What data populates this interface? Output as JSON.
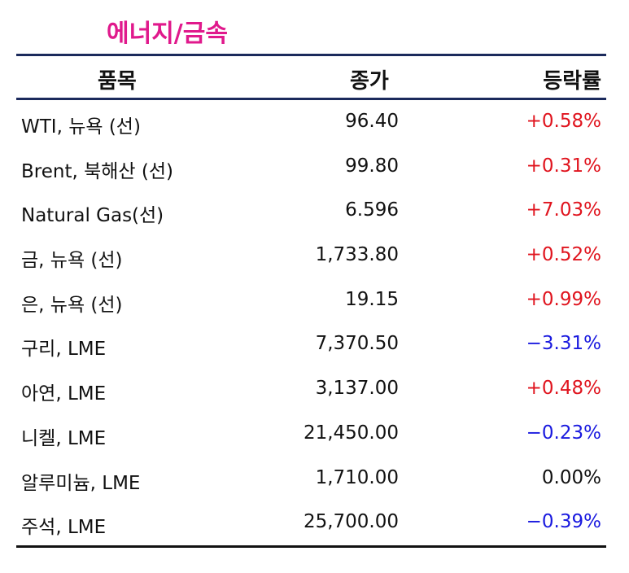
{
  "title": "에너지/금속",
  "header": {
    "item": "품목",
    "close": "종가",
    "change": "등락률"
  },
  "colors": {
    "title": "#e0198c",
    "up": "#e0141e",
    "down": "#1a1adf",
    "rule": "#1b2a5c"
  },
  "rows": [
    {
      "item": "WTI, 뉴욕 (선)",
      "close": "96.40",
      "change": "+0.58%",
      "dir": "up"
    },
    {
      "item": "Brent, 북해산 (선)",
      "close": "99.80",
      "change": "+0.31%",
      "dir": "up"
    },
    {
      "item": "Natural Gas(선)",
      "close": "6.596",
      "change": "+7.03%",
      "dir": "up"
    },
    {
      "item": "금, 뉴욕  (선)",
      "close": "1,733.80",
      "change": "+0.52%",
      "dir": "up"
    },
    {
      "item": "은, 뉴욕  (선)",
      "close": "19.15",
      "change": "+0.99%",
      "dir": "up"
    },
    {
      "item": "구리, LME",
      "close": "7,370.50",
      "change": "−3.31%",
      "dir": "down"
    },
    {
      "item": "아연, LME",
      "close": "3,137.00",
      "change": "+0.48%",
      "dir": "up"
    },
    {
      "item": "니켈, LME",
      "close": "21,450.00",
      "change": "−0.23%",
      "dir": "down"
    },
    {
      "item": "알루미늄, LME",
      "close": "1,710.00",
      "change": "0.00%",
      "dir": "flat"
    },
    {
      "item": "주석, LME",
      "close": "25,700.00",
      "change": "−0.39%",
      "dir": "down"
    }
  ]
}
